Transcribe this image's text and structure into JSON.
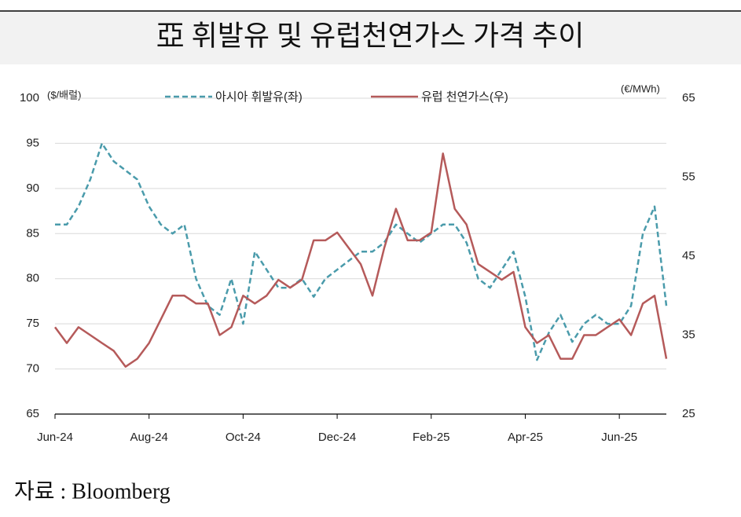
{
  "chart_data": {
    "type": "line",
    "title": "亞 휘발유 및 유럽천연가스 가격 추이",
    "source": "자료 : Bloomberg",
    "y_unit": "($/배럴)",
    "y2_unit": "(€/MWh)",
    "categories": [
      "Jun-24",
      null,
      null,
      null,
      null,
      null,
      null,
      null,
      "Aug-24",
      null,
      null,
      null,
      null,
      null,
      null,
      null,
      "Oct-24",
      null,
      null,
      null,
      null,
      null,
      null,
      null,
      "Dec-24",
      null,
      null,
      null,
      null,
      null,
      null,
      null,
      "Feb-25",
      null,
      null,
      null,
      null,
      null,
      null,
      null,
      "Apr-25",
      null,
      null,
      null,
      null,
      null,
      null,
      null,
      "Jun-25",
      null,
      null,
      null,
      null
    ],
    "series": [
      {
        "name": "아시아 휘발유(좌)",
        "color": "#4a9bab",
        "dash": true,
        "values": [
          86,
          86,
          88,
          91,
          95,
          93,
          92,
          91,
          88,
          86,
          85,
          86,
          80,
          77,
          76,
          80,
          75,
          83,
          81,
          79,
          79,
          80,
          78,
          80,
          81,
          82,
          83,
          83,
          84,
          86,
          85,
          84,
          85,
          86,
          86,
          84,
          80,
          79,
          81,
          83,
          78,
          71,
          74,
          76,
          73,
          75,
          76,
          75,
          75,
          77,
          85,
          88,
          77
        ]
      },
      {
        "name": "유럽 천연가스(우)",
        "color": "#b55a5a",
        "axis": "y2",
        "values": [
          36,
          34,
          36,
          35,
          34,
          33,
          31,
          32,
          34,
          37,
          40,
          40,
          39,
          39,
          35,
          36,
          40,
          39,
          40,
          42,
          41,
          42,
          47,
          47,
          48,
          46,
          44,
          40,
          46,
          51,
          47,
          47,
          48,
          58,
          51,
          49,
          44,
          43,
          42,
          43,
          36,
          34,
          35,
          32,
          32,
          35,
          35,
          36,
          37,
          35,
          39,
          40,
          32
        ]
      }
    ],
    "ylim": [
      65,
      100
    ],
    "yticks": [
      65,
      70,
      75,
      80,
      85,
      90,
      95,
      100
    ],
    "y2lim": [
      25,
      65
    ],
    "y2ticks": [
      25,
      35,
      45,
      55,
      65
    ],
    "grid": true,
    "legend": "top"
  }
}
